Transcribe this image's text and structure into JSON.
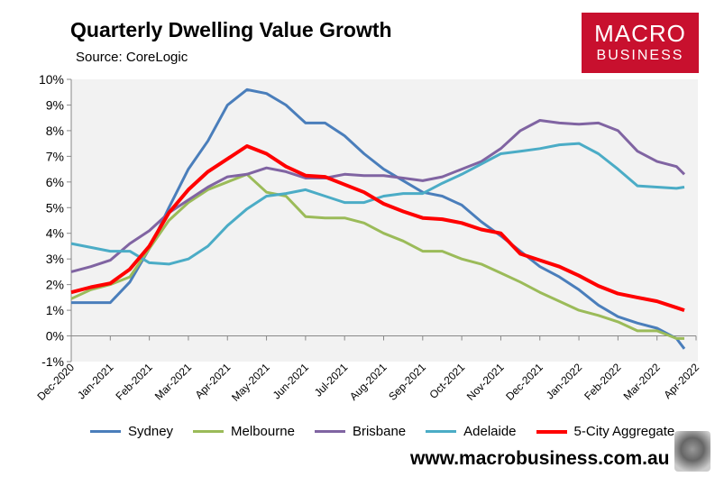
{
  "chart_data": {
    "type": "line",
    "title": "Quarterly Dwelling Value Growth",
    "subtitle": "Source: CoreLogic",
    "ylim": [
      -1,
      10
    ],
    "y_ticks": [
      "-1%",
      "0%",
      "1%",
      "2%",
      "3%",
      "4%",
      "5%",
      "6%",
      "7%",
      "8%",
      "9%",
      "10%"
    ],
    "x_ticks": [
      "Dec-2020",
      "Jan-2021",
      "Feb-2021",
      "Mar-2021",
      "Apr-2021",
      "May-2021",
      "Jun-2021",
      "Jul-2021",
      "Aug-2021",
      "Sep-2021",
      "Oct-2021",
      "Nov-2021",
      "Dec-2021",
      "Jan-2022",
      "Feb-2022",
      "Mar-2022",
      "Apr-2022"
    ],
    "grid": false,
    "legend": "bottom",
    "x": [
      "2020-12-01",
      "2020-12-16",
      "2021-01-01",
      "2021-01-16",
      "2021-02-01",
      "2021-02-16",
      "2021-03-01",
      "2021-03-16",
      "2021-04-01",
      "2021-04-16",
      "2021-05-01",
      "2021-05-16",
      "2021-06-01",
      "2021-06-16",
      "2021-07-01",
      "2021-07-16",
      "2021-08-01",
      "2021-08-16",
      "2021-09-01",
      "2021-09-16",
      "2021-10-01",
      "2021-10-16",
      "2021-11-01",
      "2021-11-16",
      "2021-12-01",
      "2021-12-16",
      "2022-01-01",
      "2022-01-16",
      "2022-02-01",
      "2022-02-16",
      "2022-03-01",
      "2022-03-16",
      "2022-03-22"
    ],
    "series": [
      {
        "name": "Sydney",
        "color": "#4a7ebb",
        "values": [
          1.3,
          1.3,
          1.3,
          2.1,
          3.4,
          5.0,
          6.5,
          7.6,
          9.0,
          9.6,
          9.45,
          9.0,
          8.3,
          8.3,
          7.8,
          7.1,
          6.5,
          6.05,
          5.6,
          5.45,
          5.1,
          4.45,
          3.9,
          3.3,
          2.7,
          2.3,
          1.8,
          1.2,
          0.75,
          0.5,
          0.3,
          -0.1,
          -0.5
        ]
      },
      {
        "name": "Melbourne",
        "color": "#9bbb59",
        "values": [
          1.45,
          1.8,
          2.0,
          2.3,
          3.4,
          4.5,
          5.2,
          5.7,
          6.0,
          6.3,
          5.6,
          5.45,
          4.65,
          4.6,
          4.6,
          4.4,
          4.0,
          3.7,
          3.3,
          3.3,
          3.0,
          2.8,
          2.45,
          2.1,
          1.7,
          1.35,
          1.0,
          0.8,
          0.55,
          0.2,
          0.2,
          -0.1,
          -0.1
        ]
      },
      {
        "name": "Brisbane",
        "color": "#8064a2",
        "values": [
          2.5,
          2.7,
          2.95,
          3.6,
          4.1,
          4.8,
          5.3,
          5.8,
          6.2,
          6.3,
          6.55,
          6.4,
          6.15,
          6.15,
          6.3,
          6.25,
          6.25,
          6.15,
          6.05,
          6.2,
          6.5,
          6.8,
          7.3,
          8.0,
          8.4,
          8.3,
          8.25,
          8.3,
          8.0,
          7.2,
          6.8,
          6.6,
          6.3
        ]
      },
      {
        "name": "Adelaide",
        "color": "#4bacc6",
        "values": [
          3.6,
          3.45,
          3.3,
          3.3,
          2.85,
          2.8,
          3.0,
          3.5,
          4.3,
          4.95,
          5.45,
          5.55,
          5.7,
          5.45,
          5.2,
          5.2,
          5.45,
          5.55,
          5.55,
          5.95,
          6.3,
          6.7,
          7.1,
          7.2,
          7.3,
          7.45,
          7.5,
          7.1,
          6.5,
          5.85,
          5.8,
          5.75,
          5.8
        ]
      },
      {
        "name": "5-City Aggregate",
        "color": "#ff0000",
        "values": [
          1.7,
          1.9,
          2.05,
          2.6,
          3.5,
          4.8,
          5.7,
          6.4,
          6.9,
          7.4,
          7.1,
          6.6,
          6.25,
          6.2,
          5.9,
          5.6,
          5.15,
          4.85,
          4.6,
          4.55,
          4.4,
          4.15,
          4.0,
          3.2,
          2.95,
          2.7,
          2.35,
          1.95,
          1.65,
          1.5,
          1.35,
          1.1,
          1.0
        ]
      }
    ]
  },
  "logo": {
    "line1": "MACRO",
    "line2": "BUSINESS"
  },
  "footer": "www.macrobusiness.com.au"
}
